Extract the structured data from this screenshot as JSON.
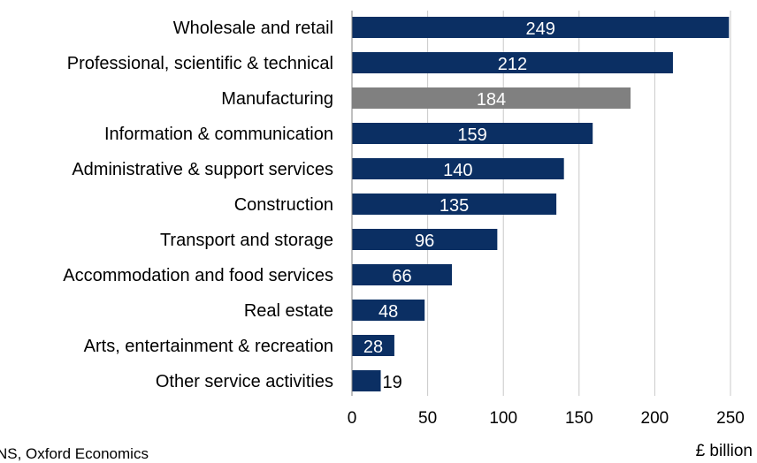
{
  "chart_data": {
    "type": "bar",
    "orientation": "horizontal",
    "categories": [
      "Wholesale and retail",
      "Professional, scientific & technical",
      "Manufacturing",
      "Information & communication",
      "Administrative & support services",
      "Construction",
      "Transport and storage",
      "Accommodation and food services",
      "Real estate",
      "Arts, entertainment & recreation",
      "Other service activities"
    ],
    "values": [
      249,
      212,
      184,
      159,
      140,
      135,
      96,
      66,
      48,
      28,
      19
    ],
    "value_labels": [
      "249",
      "212",
      "184",
      "159",
      "140",
      "135",
      "96",
      "66",
      "48",
      "28",
      "19"
    ],
    "highlight_index": 2,
    "xlabel": "£ billion",
    "xlim": [
      0,
      250
    ],
    "xticks": [
      0,
      50,
      100,
      150,
      200,
      250
    ],
    "grid": true,
    "colors": {
      "bar": "#0b2f63",
      "highlight": "#808080",
      "grid": "#c8c8c8",
      "axis": "#808080",
      "label_inside": "#ffffff",
      "label_outside": "#000000"
    }
  },
  "source": "NS, Oxford Economics"
}
